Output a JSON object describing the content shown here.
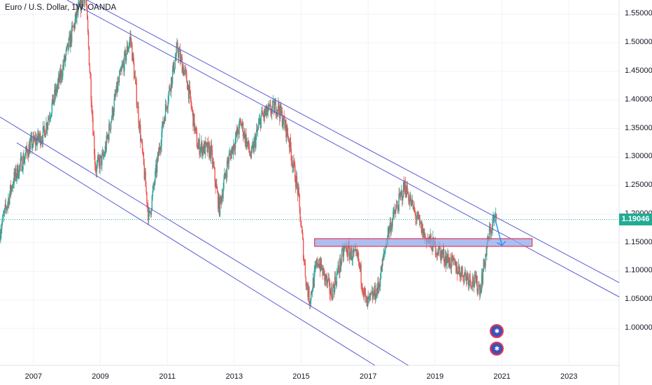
{
  "header": {
    "title": "Euro / U.S. Dollar, 1W, OANDA"
  },
  "price_tag": {
    "value": "1.19046"
  },
  "colors": {
    "up": "#26a69a",
    "down": "#ef5350",
    "channel": "#5b5bd6",
    "zone_fill": "#93a8e8",
    "zone_border": "#e53955",
    "arrow": "#2196f3",
    "price_tag": "#22ab94"
  },
  "icons": [
    "event-marker-icon",
    "event-marker-icon"
  ],
  "chart_data": {
    "type": "candlestick",
    "title": "Euro / U.S. Dollar, 1W, OANDA",
    "x_axis": {
      "range": [
        2006.0,
        2024.5
      ],
      "ticks": [
        "2007",
        "2009",
        "2011",
        "2013",
        "2015",
        "2017",
        "2019",
        "2021",
        "2023"
      ]
    },
    "y_axis": {
      "range": [
        0.935,
        1.575
      ],
      "position": "right",
      "ticks": [
        "1.55000",
        "1.50000",
        "1.45000",
        "1.40000",
        "1.35000",
        "1.30000",
        "1.25000",
        "1.20000",
        "1.15000",
        "1.10000",
        "1.05000",
        "1.00000"
      ]
    },
    "last_price": 1.19046,
    "price_path": [
      [
        2006.0,
        1.17
      ],
      [
        2006.4,
        1.26
      ],
      [
        2006.9,
        1.32
      ],
      [
        2007.3,
        1.34
      ],
      [
        2007.8,
        1.44
      ],
      [
        2008.3,
        1.55
      ],
      [
        2008.55,
        1.59
      ],
      [
        2008.85,
        1.28
      ],
      [
        2009.1,
        1.3
      ],
      [
        2009.5,
        1.42
      ],
      [
        2009.9,
        1.51
      ],
      [
        2010.4,
        1.22
      ],
      [
        2010.45,
        1.19
      ],
      [
        2010.9,
        1.37
      ],
      [
        2011.3,
        1.49
      ],
      [
        2011.6,
        1.43
      ],
      [
        2011.9,
        1.32
      ],
      [
        2012.3,
        1.31
      ],
      [
        2012.55,
        1.21
      ],
      [
        2012.8,
        1.29
      ],
      [
        2013.2,
        1.36
      ],
      [
        2013.5,
        1.3
      ],
      [
        2013.8,
        1.37
      ],
      [
        2014.3,
        1.39
      ],
      [
        2014.6,
        1.34
      ],
      [
        2014.9,
        1.24
      ],
      [
        2015.15,
        1.08
      ],
      [
        2015.25,
        1.05
      ],
      [
        2015.5,
        1.12
      ],
      [
        2015.9,
        1.06
      ],
      [
        2016.3,
        1.14
      ],
      [
        2016.7,
        1.12
      ],
      [
        2016.95,
        1.04
      ],
      [
        2017.3,
        1.07
      ],
      [
        2017.6,
        1.17
      ],
      [
        2018.1,
        1.25
      ],
      [
        2018.4,
        1.2
      ],
      [
        2018.7,
        1.16
      ],
      [
        2019.2,
        1.13
      ],
      [
        2019.75,
        1.1
      ],
      [
        2020.2,
        1.08
      ],
      [
        2020.35,
        1.07
      ],
      [
        2020.6,
        1.16
      ],
      [
        2020.75,
        1.19
      ],
      [
        2020.85,
        1.19
      ]
    ],
    "drawings": {
      "descending_channel_upper": [
        [
          2008.6,
          1.575
        ],
        [
          2024.5,
          1.08
        ]
      ],
      "descending_channel_mid": [
        [
          2008.0,
          1.575
        ],
        [
          2024.5,
          1.055
        ]
      ],
      "descending_channel_lower": [
        [
          2006.0,
          1.37
        ],
        [
          2018.2,
          0.935
        ]
      ],
      "descending_channel_bottom": [
        [
          2006.5,
          1.325
        ],
        [
          2017.2,
          0.935
        ]
      ],
      "support_zone": {
        "x": [
          2015.4,
          2021.9
        ],
        "y": [
          1.1435,
          1.157
        ]
      },
      "projection_arrow": [
        [
          2020.8,
          1.19
        ],
        [
          2021.0,
          1.145
        ]
      ]
    }
  },
  "axis_ticks": {
    "y": [
      {
        "value": 1.55,
        "label": "1.55000"
      },
      {
        "value": 1.5,
        "label": "1.50000"
      },
      {
        "value": 1.45,
        "label": "1.45000"
      },
      {
        "value": 1.4,
        "label": "1.40000"
      },
      {
        "value": 1.35,
        "label": "1.35000"
      },
      {
        "value": 1.3,
        "label": "1.30000"
      },
      {
        "value": 1.25,
        "label": "1.25000"
      },
      {
        "value": 1.2,
        "label": "1.20000"
      },
      {
        "value": 1.15,
        "label": "1.15000"
      },
      {
        "value": 1.1,
        "label": "1.10000"
      },
      {
        "value": 1.05,
        "label": "1.05000"
      },
      {
        "value": 1.0,
        "label": "1.00000"
      }
    ],
    "x": [
      {
        "value": 2007,
        "label": "2007"
      },
      {
        "value": 2009,
        "label": "2009"
      },
      {
        "value": 2011,
        "label": "2011"
      },
      {
        "value": 2013,
        "label": "2013"
      },
      {
        "value": 2015,
        "label": "2015"
      },
      {
        "value": 2017,
        "label": "2017"
      },
      {
        "value": 2019,
        "label": "2019"
      },
      {
        "value": 2021,
        "label": "2021"
      },
      {
        "value": 2023,
        "label": "2023"
      }
    ]
  },
  "event_markers": [
    {
      "x": 2020.85,
      "y": 0.995
    },
    {
      "x": 2020.85,
      "y": 0.965
    }
  ]
}
